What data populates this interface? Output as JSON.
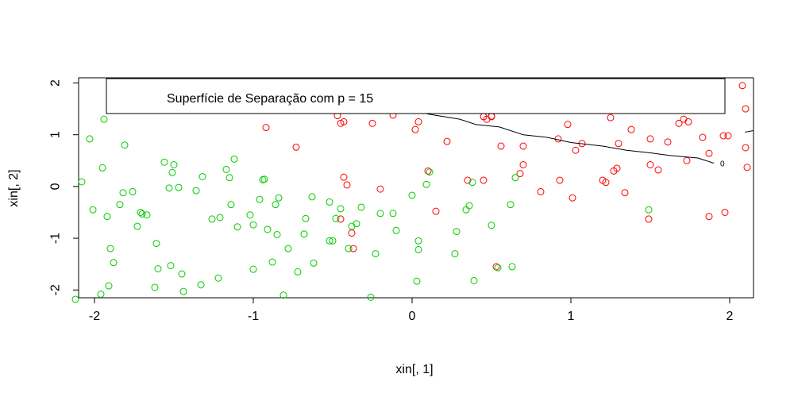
{
  "chart_data": {
    "type": "scatter",
    "title": "",
    "xlabel": "xin[, 1]",
    "ylabel": "xin[, 2]",
    "xlim": [
      -2.1,
      2.15
    ],
    "ylim": [
      -2.15,
      2.1
    ],
    "xticks": [
      -2,
      -1,
      0,
      1,
      2
    ],
    "yticks": [
      -2,
      -1,
      0,
      1,
      2
    ],
    "grid": false,
    "legend": {
      "text": "Superfície de Separação com p = 15",
      "placement": "top"
    },
    "contour": {
      "label": "0",
      "color": "#000000",
      "points": [
        [
          -0.55,
          2.0
        ],
        [
          -0.3,
          1.8
        ],
        [
          -0.05,
          1.55
        ],
        [
          0.1,
          1.4
        ],
        [
          0.3,
          1.3
        ],
        [
          0.4,
          1.2
        ],
        [
          0.55,
          1.15
        ],
        [
          0.7,
          1.0
        ],
        [
          0.85,
          0.95
        ],
        [
          1.0,
          0.85
        ],
        [
          1.2,
          0.78
        ],
        [
          1.35,
          0.7
        ],
        [
          1.5,
          0.65
        ],
        [
          1.62,
          0.6
        ],
        [
          1.8,
          0.55
        ],
        [
          1.9,
          0.45
        ]
      ]
    },
    "series": [
      {
        "name": "",
        "color": "#ff0000",
        "points": [
          [
            -0.92,
            1.14
          ],
          [
            -0.73,
            0.76
          ],
          [
            -0.47,
            1.37
          ],
          [
            -0.45,
            1.22
          ],
          [
            -0.43,
            1.25
          ],
          [
            -0.25,
            1.22
          ],
          [
            -0.12,
            1.38
          ],
          [
            0.02,
            1.1
          ],
          [
            0.04,
            1.25
          ],
          [
            0.22,
            0.87
          ],
          [
            0.45,
            1.35
          ],
          [
            0.47,
            1.3
          ],
          [
            0.5,
            1.36
          ],
          [
            0.56,
            0.78
          ],
          [
            0.7,
            0.78
          ],
          [
            0.92,
            0.92
          ],
          [
            0.98,
            1.2
          ],
          [
            1.03,
            0.7
          ],
          [
            1.07,
            0.83
          ],
          [
            1.25,
            1.33
          ],
          [
            1.3,
            0.83
          ],
          [
            1.38,
            1.1
          ],
          [
            1.5,
            0.92
          ],
          [
            1.61,
            0.86
          ],
          [
            1.68,
            1.22
          ],
          [
            1.71,
            1.3
          ],
          [
            1.74,
            1.25
          ],
          [
            1.83,
            0.95
          ],
          [
            1.96,
            0.98
          ],
          [
            2.08,
            1.95
          ],
          [
            2.1,
            1.5
          ],
          [
            2.1,
            0.75
          ],
          [
            2.11,
            0.37
          ],
          [
            1.87,
            0.64
          ],
          [
            1.99,
            0.98
          ],
          [
            -0.45,
            -0.63
          ],
          [
            -0.43,
            0.18
          ],
          [
            -0.41,
            0.03
          ],
          [
            -0.38,
            -0.9
          ],
          [
            -0.37,
            -1.2
          ],
          [
            -0.2,
            -0.05
          ],
          [
            0.1,
            0.3
          ],
          [
            0.15,
            -0.48
          ],
          [
            0.35,
            0.12
          ],
          [
            0.45,
            0.12
          ],
          [
            0.5,
            1.35
          ],
          [
            0.53,
            -1.55
          ],
          [
            0.68,
            0.25
          ],
          [
            0.7,
            0.42
          ],
          [
            0.81,
            -0.1
          ],
          [
            0.93,
            0.12
          ],
          [
            1.01,
            -0.22
          ],
          [
            1.2,
            0.12
          ],
          [
            1.22,
            0.08
          ],
          [
            1.27,
            0.3
          ],
          [
            1.29,
            0.35
          ],
          [
            1.34,
            -0.12
          ],
          [
            1.5,
            0.42
          ],
          [
            1.49,
            -0.63
          ],
          [
            1.55,
            0.32
          ],
          [
            1.73,
            0.5
          ],
          [
            1.87,
            -0.58
          ],
          [
            1.97,
            -0.5
          ]
        ]
      },
      {
        "name": "",
        "color": "#00cc00",
        "points": [
          [
            -2.12,
            -2.18
          ],
          [
            -2.08,
            0.09
          ],
          [
            -2.03,
            0.92
          ],
          [
            -2.01,
            -0.45
          ],
          [
            -1.96,
            -2.08
          ],
          [
            -1.95,
            0.36
          ],
          [
            -1.94,
            1.3
          ],
          [
            -1.92,
            -0.58
          ],
          [
            -1.91,
            -1.92
          ],
          [
            -1.9,
            -1.2
          ],
          [
            -1.88,
            -1.47
          ],
          [
            -1.84,
            -0.35
          ],
          [
            -1.82,
            -0.12
          ],
          [
            -1.81,
            0.8
          ],
          [
            -1.76,
            -0.1
          ],
          [
            -1.73,
            -0.77
          ],
          [
            -1.71,
            -0.5
          ],
          [
            -1.7,
            -0.53
          ],
          [
            -1.67,
            -0.55
          ],
          [
            -1.62,
            -1.95
          ],
          [
            -1.61,
            -1.1
          ],
          [
            -1.6,
            -1.59
          ],
          [
            -1.56,
            0.47
          ],
          [
            -1.53,
            -0.03
          ],
          [
            -1.52,
            -1.53
          ],
          [
            -1.51,
            0.27
          ],
          [
            -1.5,
            0.42
          ],
          [
            -1.47,
            -0.02
          ],
          [
            -1.45,
            -1.69
          ],
          [
            -1.44,
            -2.03
          ],
          [
            -1.36,
            -0.08
          ],
          [
            -1.33,
            -1.9
          ],
          [
            -1.32,
            0.19
          ],
          [
            -1.26,
            -0.63
          ],
          [
            -1.22,
            -1.77
          ],
          [
            -1.21,
            -0.6
          ],
          [
            -1.17,
            0.33
          ],
          [
            -1.15,
            0.17
          ],
          [
            -1.14,
            -0.35
          ],
          [
            -1.12,
            0.53
          ],
          [
            -1.1,
            -0.78
          ],
          [
            -1.02,
            -0.55
          ],
          [
            -1.0,
            -0.74
          ],
          [
            -1.0,
            -1.6
          ],
          [
            -0.96,
            -0.25
          ],
          [
            -0.94,
            0.13
          ],
          [
            -0.93,
            0.14
          ],
          [
            -0.91,
            -0.83
          ],
          [
            -0.88,
            -1.46
          ],
          [
            -0.86,
            -0.35
          ],
          [
            -0.85,
            -0.93
          ],
          [
            -0.84,
            -0.22
          ],
          [
            -0.81,
            -2.1
          ],
          [
            -0.78,
            -1.2
          ],
          [
            -0.72,
            -1.65
          ],
          [
            -0.68,
            -0.92
          ],
          [
            -0.67,
            -0.62
          ],
          [
            -0.63,
            -0.2
          ],
          [
            -0.62,
            -1.48
          ],
          [
            -0.52,
            -1.05
          ],
          [
            -0.52,
            -0.3
          ],
          [
            -0.5,
            -1.05
          ],
          [
            -0.48,
            -0.62
          ],
          [
            -0.45,
            -0.43
          ],
          [
            -0.4,
            -1.2
          ],
          [
            -0.38,
            -0.77
          ],
          [
            -0.35,
            -0.72
          ],
          [
            -0.32,
            -0.4
          ],
          [
            -0.26,
            -2.14
          ],
          [
            -0.23,
            -1.3
          ],
          [
            -0.2,
            -0.52
          ],
          [
            -0.12,
            -0.52
          ],
          [
            -0.1,
            -0.85
          ],
          [
            0.0,
            -0.17
          ],
          [
            0.03,
            -1.83
          ],
          [
            0.04,
            -1.22
          ],
          [
            0.04,
            -1.05
          ],
          [
            0.09,
            0.04
          ],
          [
            0.11,
            0.28
          ],
          [
            0.27,
            -1.3
          ],
          [
            0.28,
            -0.87
          ],
          [
            0.34,
            -0.45
          ],
          [
            0.36,
            -0.37
          ],
          [
            0.38,
            0.08
          ],
          [
            0.39,
            -1.82
          ],
          [
            0.5,
            -0.75
          ],
          [
            0.54,
            -1.57
          ],
          [
            0.62,
            -0.35
          ],
          [
            0.63,
            -1.55
          ],
          [
            0.65,
            0.17
          ],
          [
            1.49,
            -0.45
          ]
        ]
      }
    ]
  }
}
